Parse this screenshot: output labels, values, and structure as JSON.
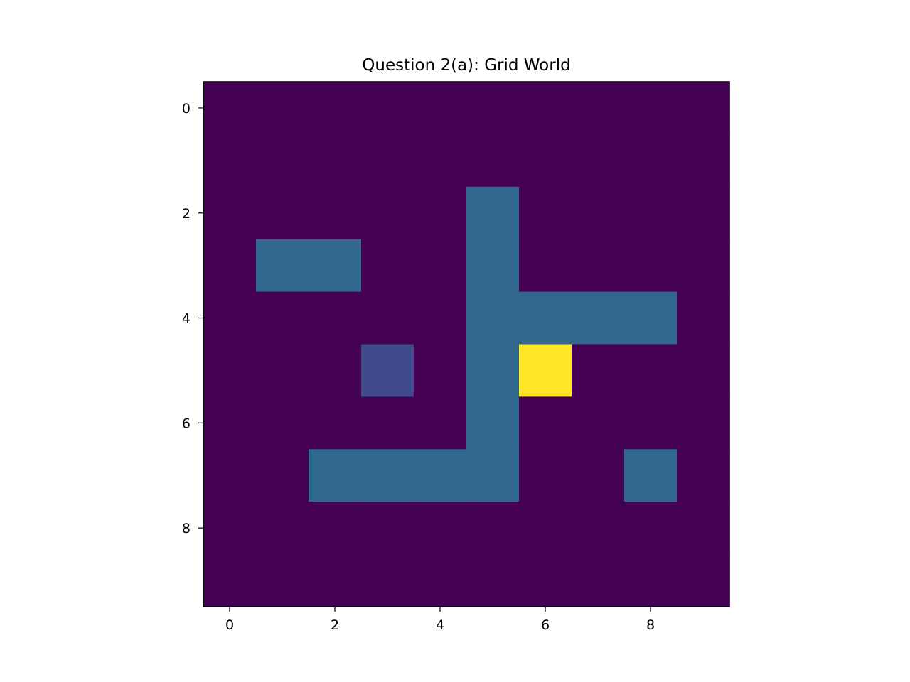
{
  "chart_data": {
    "type": "heatmap",
    "title": "Question 2(a): Grid World",
    "xlabel": "",
    "ylabel": "",
    "xlim": [
      -0.5,
      9.5
    ],
    "ylim": [
      9.5,
      -0.5
    ],
    "x_ticks": [
      0,
      2,
      4,
      6,
      8
    ],
    "y_ticks": [
      0,
      2,
      4,
      6,
      8
    ],
    "grid": false,
    "colormap": "viridis",
    "value_colors": {
      "0": "#440154",
      "1": "#3e4a89",
      "2": "#31688e",
      "3": "#fde725"
    },
    "values": [
      [
        0,
        0,
        0,
        0,
        0,
        0,
        0,
        0,
        0,
        0
      ],
      [
        0,
        0,
        0,
        0,
        0,
        0,
        0,
        0,
        0,
        0
      ],
      [
        0,
        0,
        0,
        0,
        0,
        2,
        0,
        0,
        0,
        0
      ],
      [
        0,
        2,
        2,
        0,
        0,
        2,
        0,
        0,
        0,
        0
      ],
      [
        0,
        0,
        0,
        0,
        0,
        2,
        2,
        2,
        2,
        0
      ],
      [
        0,
        0,
        0,
        1,
        0,
        2,
        3,
        0,
        0,
        0
      ],
      [
        0,
        0,
        0,
        0,
        0,
        2,
        0,
        0,
        0,
        0
      ],
      [
        0,
        0,
        2,
        2,
        2,
        2,
        0,
        0,
        2,
        0
      ],
      [
        0,
        0,
        0,
        0,
        0,
        0,
        0,
        0,
        0,
        0
      ],
      [
        0,
        0,
        0,
        0,
        0,
        0,
        0,
        0,
        0,
        0
      ]
    ]
  }
}
